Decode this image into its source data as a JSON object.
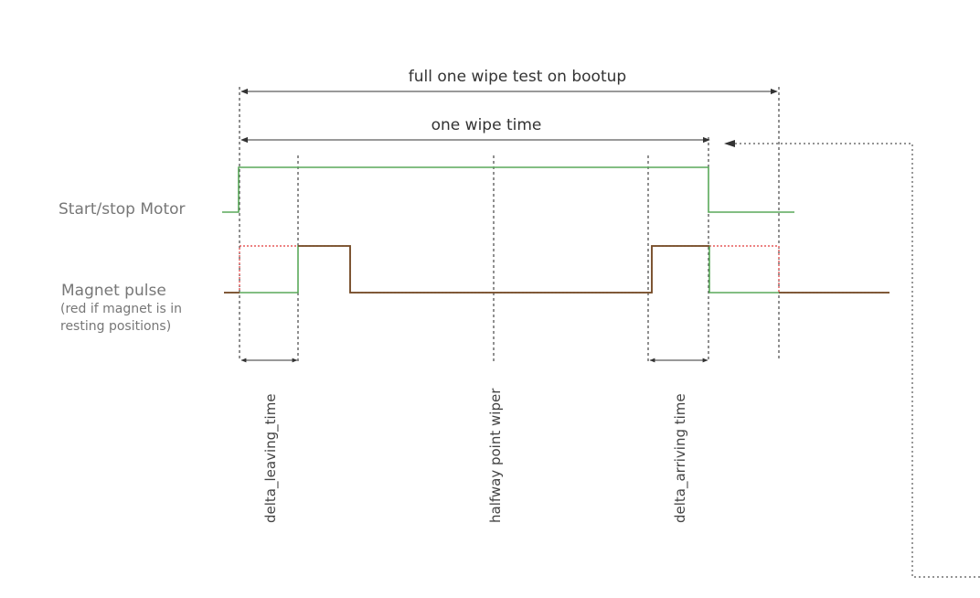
{
  "labels": {
    "full_test": "full one wipe test on bootup",
    "one_wipe": "one wipe time",
    "motor": "Start/stop Motor",
    "magnet": "Magnet pulse",
    "magnet_note_1": "(red if magnet is in",
    "magnet_note_2": "resting positions)",
    "delta_leaving": "delta_leaving_time",
    "halfway": "halfway point wiper",
    "delta_arriving": "delta_arriving time"
  },
  "colors": {
    "signal_green": "#5aa95a",
    "signal_red": "#e03b3b",
    "signal_dark": "#7a4a2a",
    "guide": "#222222",
    "label_gray": "#777777",
    "label_dark": "#333333"
  }
}
